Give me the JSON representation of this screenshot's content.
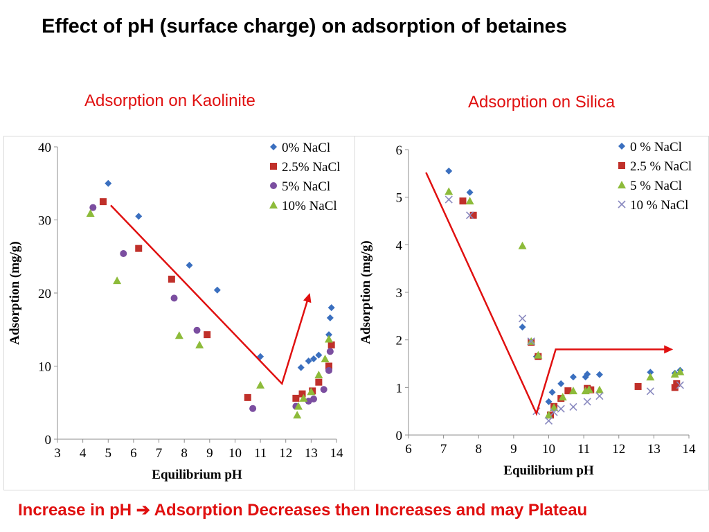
{
  "title": "Effect of pH (surface charge) on adsorption of betaines",
  "subtitles": {
    "left": "Adsorption on Kaolinite",
    "right": "Adsorption on Silica"
  },
  "footer": {
    "part1": "Increase in pH",
    "arrow": "➔",
    "part2": "Adsorption Decreases then Increases and may Plateau"
  },
  "colors": {
    "accent": "#e01010",
    "s0": "#3a6fbf",
    "s25": "#c0302a",
    "s5": "#7b4ea0",
    "s10": "#8dbb3a",
    "s10silica": "#8a8ac0",
    "arrow": "#e01010"
  },
  "chart_data": [
    {
      "type": "scatter",
      "title": "Adsorption on Kaolinite",
      "xlabel": "Equilibrium pH",
      "ylabel": "Adsorption (mg/g)",
      "xlim": [
        3,
        14
      ],
      "ylim": [
        0,
        40
      ],
      "xticks": [
        3,
        4,
        5,
        6,
        7,
        8,
        9,
        10,
        11,
        12,
        13,
        14
      ],
      "yticks": [
        0,
        10,
        20,
        30,
        40
      ],
      "legend_position": "top-right",
      "series": [
        {
          "name": "0% NaCl",
          "marker": "diamond",
          "color": "#3a6fbf",
          "points": [
            [
              5.0,
              35
            ],
            [
              6.2,
              30.5
            ],
            [
              8.2,
              23.8
            ],
            [
              9.3,
              20.4
            ],
            [
              11.0,
              11.3
            ],
            [
              12.6,
              9.8
            ],
            [
              12.9,
              10.7
            ],
            [
              13.1,
              11.0
            ],
            [
              13.3,
              11.5
            ],
            [
              13.7,
              14.3
            ],
            [
              13.75,
              16.6
            ],
            [
              13.8,
              18.0
            ]
          ]
        },
        {
          "name": "2.5% NaCl",
          "marker": "square",
          "color": "#c0302a",
          "points": [
            [
              4.8,
              32.5
            ],
            [
              6.2,
              26.1
            ],
            [
              7.5,
              21.9
            ],
            [
              8.9,
              14.3
            ],
            [
              10.5,
              5.7
            ],
            [
              12.4,
              5.6
            ],
            [
              12.65,
              6.2
            ],
            [
              13.05,
              6.6
            ],
            [
              13.3,
              7.8
            ],
            [
              13.7,
              10.0
            ],
            [
              13.8,
              12.9
            ]
          ]
        },
        {
          "name": "5% NaCl",
          "marker": "circle",
          "color": "#7b4ea0",
          "points": [
            [
              4.4,
              31.7
            ],
            [
              5.6,
              25.4
            ],
            [
              7.6,
              19.3
            ],
            [
              8.5,
              14.9
            ],
            [
              10.7,
              4.2
            ],
            [
              12.4,
              4.5
            ],
            [
              12.9,
              5.2
            ],
            [
              13.1,
              5.5
            ],
            [
              13.5,
              6.8
            ],
            [
              13.7,
              9.4
            ],
            [
              13.75,
              12.0
            ]
          ]
        },
        {
          "name": "10% NaCl",
          "marker": "triangle",
          "color": "#8dbb3a",
          "points": [
            [
              4.3,
              30.9
            ],
            [
              5.35,
              21.7
            ],
            [
              7.8,
              14.2
            ],
            [
              8.6,
              12.9
            ],
            [
              11.0,
              7.4
            ],
            [
              12.45,
              3.3
            ],
            [
              12.5,
              4.5
            ],
            [
              12.7,
              5.6
            ],
            [
              13.0,
              6.5
            ],
            [
              13.3,
              8.8
            ],
            [
              13.55,
              11.0
            ],
            [
              13.7,
              13.7
            ]
          ]
        }
      ]
    },
    {
      "type": "scatter",
      "title": "Adsorption on Silica",
      "xlabel": "Equilibrium pH",
      "ylabel": "Adsorption (mg/g)",
      "xlim": [
        6,
        14
      ],
      "ylim": [
        0,
        6
      ],
      "xticks": [
        6,
        7,
        8,
        9,
        10,
        11,
        12,
        13,
        14
      ],
      "yticks": [
        0,
        1,
        2,
        3,
        4,
        5,
        6
      ],
      "legend_position": "top-right",
      "series": [
        {
          "name": "0 % NaCl",
          "marker": "diamond",
          "color": "#3a6fbf",
          "points": [
            [
              7.15,
              5.55
            ],
            [
              7.75,
              5.1
            ],
            [
              9.25,
              2.27
            ],
            [
              9.5,
              1.95
            ],
            [
              9.65,
              1.65
            ],
            [
              10.0,
              0.7
            ],
            [
              10.1,
              0.9
            ],
            [
              10.35,
              1.08
            ],
            [
              10.7,
              1.22
            ],
            [
              11.05,
              1.22
            ],
            [
              11.1,
              1.28
            ],
            [
              11.45,
              1.27
            ],
            [
              12.9,
              1.32
            ],
            [
              13.6,
              1.3
            ],
            [
              13.75,
              1.36
            ]
          ]
        },
        {
          "name": "2.5 % NaCl",
          "marker": "square",
          "color": "#c0302a",
          "points": [
            [
              7.55,
              4.92
            ],
            [
              7.85,
              4.62
            ],
            [
              9.5,
              1.95
            ],
            [
              9.7,
              1.65
            ],
            [
              10.05,
              0.42
            ],
            [
              10.15,
              0.6
            ],
            [
              10.35,
              0.77
            ],
            [
              10.55,
              0.93
            ],
            [
              11.1,
              0.98
            ],
            [
              11.2,
              0.95
            ],
            [
              12.55,
              1.02
            ],
            [
              13.6,
              1.0
            ],
            [
              13.65,
              1.08
            ]
          ]
        },
        {
          "name": "5 % NaCl",
          "marker": "triangle",
          "color": "#8dbb3a",
          "points": [
            [
              7.15,
              5.12
            ],
            [
              7.75,
              4.92
            ],
            [
              9.25,
              3.98
            ],
            [
              9.5,
              1.97
            ],
            [
              9.7,
              1.68
            ],
            [
              10.0,
              0.42
            ],
            [
              10.15,
              0.58
            ],
            [
              10.4,
              0.8
            ],
            [
              10.7,
              0.93
            ],
            [
              11.05,
              0.93
            ],
            [
              11.15,
              0.96
            ],
            [
              11.45,
              0.95
            ],
            [
              12.9,
              1.22
            ],
            [
              13.6,
              1.28
            ],
            [
              13.75,
              1.33
            ]
          ]
        },
        {
          "name": "10 % NaCl",
          "marker": "cross",
          "color": "#8a8ac0",
          "points": [
            [
              7.15,
              4.95
            ],
            [
              7.75,
              4.62
            ],
            [
              9.25,
              2.45
            ],
            [
              9.5,
              1.97
            ],
            [
              9.65,
              0.5
            ],
            [
              10.0,
              0.3
            ],
            [
              10.15,
              0.48
            ],
            [
              10.35,
              0.55
            ],
            [
              10.7,
              0.59
            ],
            [
              11.1,
              0.7
            ],
            [
              11.45,
              0.82
            ],
            [
              12.9,
              0.92
            ],
            [
              13.75,
              1.05
            ]
          ]
        }
      ],
      "arrows_note": "trend arrows"
    }
  ]
}
